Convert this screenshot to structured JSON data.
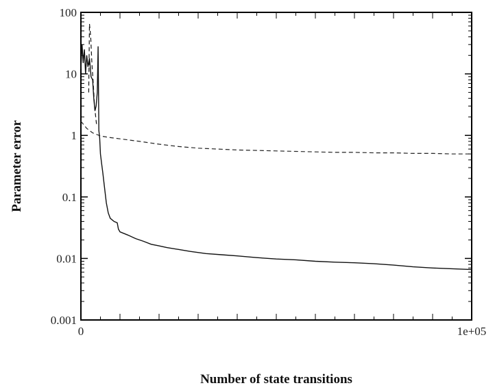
{
  "chart_data": {
    "type": "line",
    "title": "",
    "xlabel": "Number of state transitions",
    "ylabel": "Parameter error",
    "xlim": [
      0,
      100000
    ],
    "ylim": [
      0.001,
      100
    ],
    "yscale": "log",
    "grid": false,
    "legend": "none",
    "x_tick_labels": [
      "0",
      "1e+05"
    ],
    "y_tick_labels": [
      "0.001",
      "0.01",
      "0.1",
      "1",
      "10",
      "100"
    ],
    "series": [
      {
        "style": "dashed",
        "color": "#222222",
        "points": [
          [
            0,
            1.7
          ],
          [
            1500,
            1.3
          ],
          [
            3000,
            1.1
          ],
          [
            5000,
            0.98
          ],
          [
            7000,
            0.93
          ],
          [
            10000,
            0.88
          ],
          [
            15000,
            0.8
          ],
          [
            20000,
            0.72
          ],
          [
            25000,
            0.66
          ],
          [
            30000,
            0.62
          ],
          [
            35000,
            0.6
          ],
          [
            40000,
            0.58
          ],
          [
            45000,
            0.57
          ],
          [
            50000,
            0.56
          ],
          [
            55000,
            0.55
          ],
          [
            60000,
            0.54
          ],
          [
            65000,
            0.53
          ],
          [
            70000,
            0.53
          ],
          [
            75000,
            0.52
          ],
          [
            80000,
            0.52
          ],
          [
            85000,
            0.51
          ],
          [
            90000,
            0.51
          ],
          [
            95000,
            0.5
          ],
          [
            100000,
            0.5
          ]
        ]
      },
      {
        "style": "solid",
        "color": "#111111",
        "points": [
          [
            0,
            12
          ],
          [
            300,
            30
          ],
          [
            600,
            15
          ],
          [
            900,
            25
          ],
          [
            1200,
            10
          ],
          [
            1500,
            20
          ],
          [
            1800,
            13
          ],
          [
            2200,
            18
          ],
          [
            2600,
            9
          ],
          [
            3000,
            8
          ],
          [
            3300,
            4
          ],
          [
            3600,
            2.5
          ],
          [
            3900,
            3
          ],
          [
            4200,
            5
          ],
          [
            4400,
            28
          ],
          [
            4600,
            1.2
          ],
          [
            4800,
            0.9
          ],
          [
            5000,
            0.5
          ],
          [
            5300,
            0.35
          ],
          [
            5600,
            0.25
          ],
          [
            6000,
            0.15
          ],
          [
            6500,
            0.08
          ],
          [
            7000,
            0.055
          ],
          [
            7500,
            0.045
          ],
          [
            8500,
            0.04
          ],
          [
            9300,
            0.038
          ],
          [
            9600,
            0.03
          ],
          [
            10000,
            0.027
          ],
          [
            12000,
            0.024
          ],
          [
            14000,
            0.021
          ],
          [
            16000,
            0.019
          ],
          [
            18000,
            0.017
          ],
          [
            20000,
            0.016
          ],
          [
            22000,
            0.015
          ],
          [
            25000,
            0.014
          ],
          [
            28000,
            0.013
          ],
          [
            32000,
            0.012
          ],
          [
            36000,
            0.0115
          ],
          [
            40000,
            0.011
          ],
          [
            45000,
            0.0103
          ],
          [
            50000,
            0.0098
          ],
          [
            55000,
            0.0095
          ],
          [
            60000,
            0.009
          ],
          [
            65000,
            0.0087
          ],
          [
            70000,
            0.0085
          ],
          [
            75000,
            0.0082
          ],
          [
            80000,
            0.0078
          ],
          [
            85000,
            0.0073
          ],
          [
            90000,
            0.007
          ],
          [
            95000,
            0.0068
          ],
          [
            100000,
            0.0066
          ]
        ]
      },
      {
        "style": "dashed",
        "color": "#111111",
        "points": [
          [
            2000,
            5
          ],
          [
            2200,
            65
          ],
          [
            2500,
            40
          ],
          [
            2800,
            15
          ],
          [
            3100,
            8
          ],
          [
            3500,
            3
          ],
          [
            4000,
            1.5
          ]
        ]
      }
    ]
  }
}
